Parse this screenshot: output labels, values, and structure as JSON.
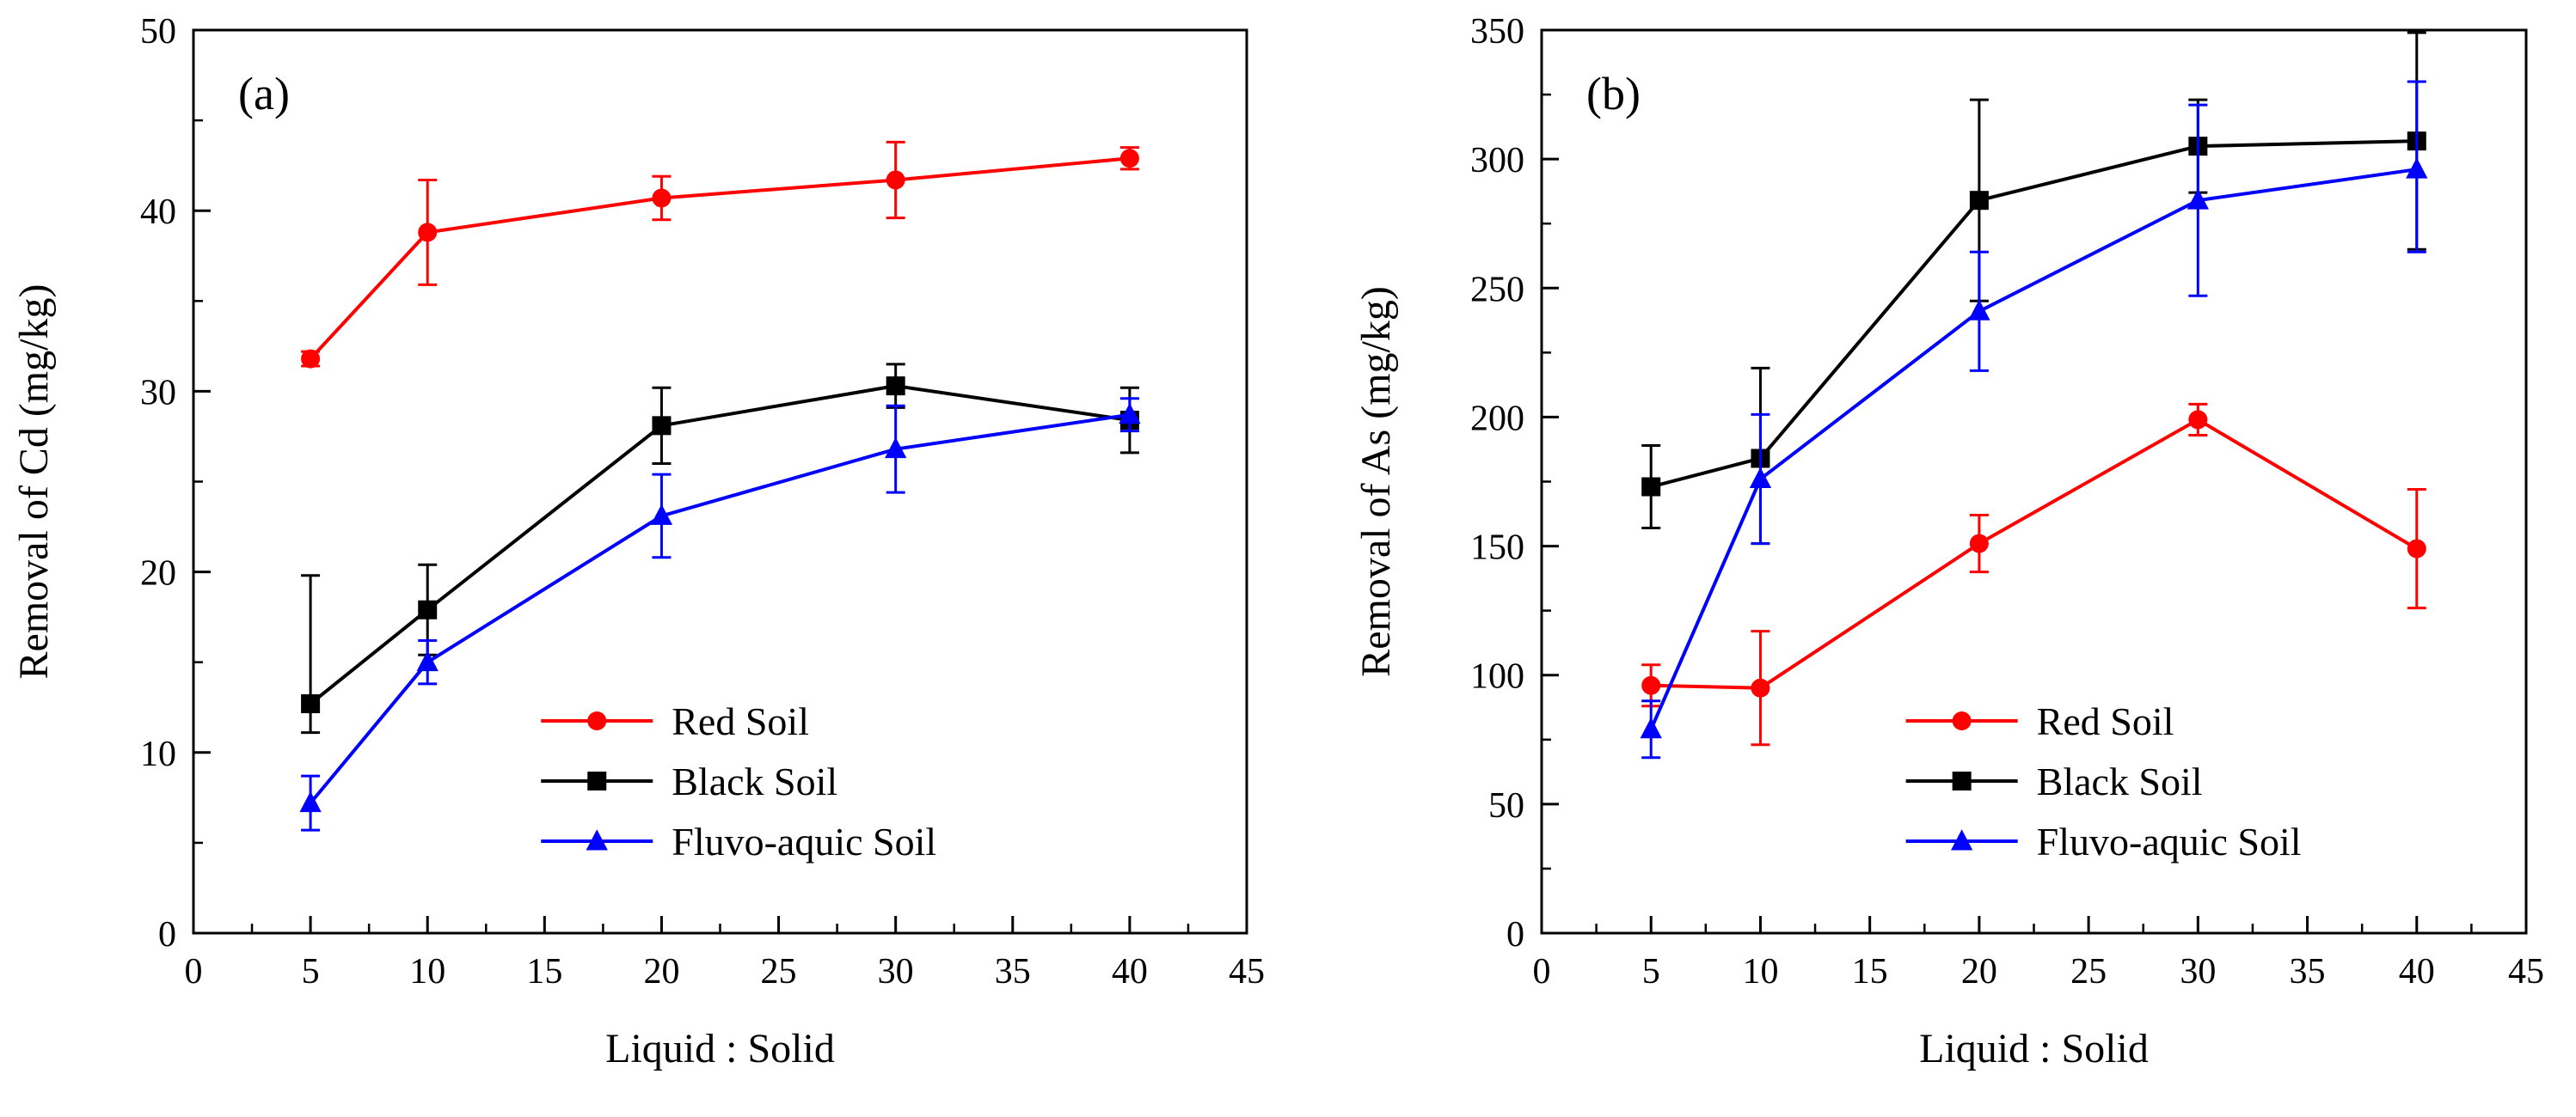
{
  "figure": {
    "description": "Two-panel line chart figure with error bars comparing removal of Cd and As across liquid-to-solid ratios for three soil types",
    "accent_colors": {
      "red_soil": "#ff0000",
      "black_soil": "#000000",
      "fluvo_aquic_soil": "#0000ff"
    }
  },
  "chart_data": [
    {
      "type": "line",
      "panel_label": "(a)",
      "xlabel": "Liquid : Solid",
      "ylabel": "Removal of Cd (mg/kg)",
      "xlim": [
        0,
        45
      ],
      "ylim": [
        0,
        50
      ],
      "xticks": [
        0,
        5,
        10,
        15,
        20,
        25,
        30,
        35,
        40,
        45
      ],
      "yticks": [
        0,
        10,
        20,
        30,
        40,
        50
      ],
      "x_minor_step": 2.5,
      "y_minor_step": 5,
      "grid": false,
      "legend_position": "inside lower right",
      "x": [
        5,
        10,
        20,
        30,
        40
      ],
      "series": [
        {
          "name": "Red Soil",
          "color": "#ff0000",
          "marker": "circle",
          "values": [
            31.8,
            38.8,
            40.7,
            41.7,
            42.9
          ],
          "err_lo": [
            0.4,
            2.9,
            1.2,
            2.1,
            0.6
          ],
          "err_hi": [
            0.4,
            2.9,
            1.2,
            2.1,
            0.6
          ]
        },
        {
          "name": "Black Soil",
          "color": "#000000",
          "marker": "square",
          "values": [
            12.7,
            17.9,
            28.1,
            30.3,
            28.4
          ],
          "err_lo": [
            1.6,
            2.5,
            2.1,
            1.2,
            1.8
          ],
          "err_hi": [
            7.1,
            2.5,
            2.1,
            1.2,
            1.8
          ]
        },
        {
          "name": "Fluvo-aquic Soil",
          "color": "#0000ff",
          "marker": "triangle",
          "values": [
            7.2,
            15.0,
            23.1,
            26.8,
            28.7
          ],
          "err_lo": [
            1.5,
            1.2,
            2.3,
            2.4,
            0.9
          ],
          "err_hi": [
            1.5,
            1.2,
            2.3,
            2.4,
            0.9
          ]
        }
      ]
    },
    {
      "type": "line",
      "panel_label": "(b)",
      "xlabel": "Liquid : Solid",
      "ylabel": "Removal of As (mg/kg)",
      "xlim": [
        0,
        45
      ],
      "ylim": [
        0,
        350
      ],
      "xticks": [
        0,
        5,
        10,
        15,
        20,
        25,
        30,
        35,
        40,
        45
      ],
      "yticks": [
        0,
        50,
        100,
        150,
        200,
        250,
        300,
        350
      ],
      "x_minor_step": 2.5,
      "y_minor_step": 25,
      "grid": false,
      "legend_position": "inside lower right",
      "x": [
        5,
        10,
        20,
        30,
        40
      ],
      "series": [
        {
          "name": "Red Soil",
          "color": "#ff0000",
          "marker": "circle",
          "values": [
            96,
            95,
            151,
            199,
            149
          ],
          "err_lo": [
            8,
            22,
            11,
            6,
            23
          ],
          "err_hi": [
            8,
            22,
            11,
            6,
            23
          ]
        },
        {
          "name": "Black Soil",
          "color": "#000000",
          "marker": "square",
          "values": [
            173,
            184,
            284,
            305,
            307
          ],
          "err_lo": [
            16,
            33,
            39,
            18,
            42
          ],
          "err_hi": [
            16,
            35,
            39,
            18,
            42
          ]
        },
        {
          "name": "Fluvo-aquic Soil",
          "color": "#0000ff",
          "marker": "triangle",
          "values": [
            79,
            176,
            241,
            284,
            296
          ],
          "err_lo": [
            11,
            25,
            23,
            37,
            32
          ],
          "err_hi": [
            11,
            25,
            23,
            37,
            34
          ]
        }
      ]
    }
  ]
}
